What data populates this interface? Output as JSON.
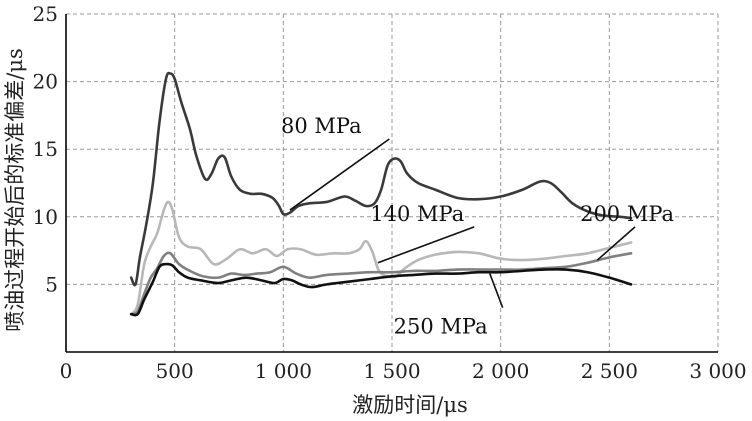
{
  "chart_data": {
    "type": "line",
    "title": "",
    "xlabel": "激励时间/μs",
    "ylabel": "喷油过程开始后的标准偏差/μs",
    "xlim": [
      0,
      3000
    ],
    "ylim": [
      0,
      25
    ],
    "xticks": [
      0,
      500,
      1000,
      1500,
      2000,
      2500,
      3000
    ],
    "xtick_labels": [
      "0",
      "500",
      "1 000",
      "1 500",
      "2 000",
      "2 500",
      "3 000"
    ],
    "yticks": [
      5,
      10,
      15,
      20,
      25
    ],
    "ytick_labels": [
      "5",
      "10",
      "15",
      "20",
      "25"
    ],
    "grid": true,
    "series": [
      {
        "name": "80 MPa",
        "color": "#3a3a3a",
        "x": [
          300,
          320,
          340,
          370,
          400,
          430,
          460,
          480,
          500,
          530,
          570,
          600,
          640,
          670,
          700,
          730,
          760,
          800,
          850,
          900,
          950,
          980,
          1000,
          1030,
          1070,
          1120,
          1200,
          1280,
          1330,
          1380,
          1420,
          1450,
          1480,
          1510,
          1540,
          1570,
          1620,
          1700,
          1800,
          1900,
          2000,
          2100,
          2180,
          2230,
          2280,
          2330,
          2400,
          2470,
          2550,
          2600
        ],
        "y": [
          5.5,
          5.0,
          7.0,
          9.5,
          12.5,
          17.0,
          20.2,
          20.6,
          20.2,
          18.5,
          16.5,
          14.5,
          12.8,
          13.2,
          14.3,
          14.4,
          13.0,
          12.0,
          11.7,
          11.7,
          11.4,
          10.8,
          10.2,
          10.3,
          10.8,
          11.0,
          11.1,
          11.5,
          11.2,
          10.8,
          11.0,
          12.0,
          13.8,
          14.3,
          14.1,
          13.2,
          12.5,
          12.0,
          11.4,
          11.3,
          11.5,
          12.0,
          12.6,
          12.5,
          11.8,
          11.0,
          10.4,
          10.1,
          10.0,
          9.9
        ]
      },
      {
        "name": "140 MPa",
        "color": "#b8b8b8",
        "x": [
          300,
          330,
          360,
          390,
          420,
          450,
          470,
          490,
          520,
          560,
          620,
          680,
          740,
          800,
          860,
          920,
          970,
          1020,
          1080,
          1150,
          1230,
          1300,
          1350,
          1380,
          1410,
          1440,
          1480,
          1520,
          1560,
          1620,
          1700,
          1800,
          1900,
          2000,
          2100,
          2200,
          2300,
          2400,
          2500,
          2600
        ],
        "y": [
          2.8,
          3.5,
          6.5,
          7.8,
          8.8,
          10.5,
          11.1,
          10.5,
          8.5,
          7.8,
          7.6,
          6.5,
          6.9,
          7.6,
          7.3,
          7.6,
          7.1,
          7.6,
          7.6,
          7.2,
          7.3,
          7.3,
          7.6,
          8.2,
          7.4,
          6.0,
          5.6,
          5.6,
          6.2,
          6.8,
          7.2,
          7.4,
          7.3,
          6.9,
          6.8,
          6.9,
          7.1,
          7.3,
          7.7,
          8.1
        ]
      },
      {
        "name": "200 MPa",
        "color": "#808080",
        "x": [
          300,
          330,
          360,
          390,
          420,
          450,
          480,
          520,
          570,
          630,
          700,
          760,
          820,
          880,
          940,
          1000,
          1060,
          1120,
          1200,
          1300,
          1400,
          1500,
          1600,
          1700,
          1800,
          1900,
          2000,
          2100,
          2200,
          2300,
          2400,
          2500,
          2600
        ],
        "y": [
          2.8,
          3.0,
          4.3,
          5.5,
          6.2,
          7.1,
          7.3,
          6.5,
          6.0,
          5.6,
          5.5,
          5.8,
          5.7,
          5.8,
          5.9,
          6.3,
          5.8,
          5.5,
          5.7,
          5.8,
          5.9,
          5.9,
          6.0,
          6.0,
          6.1,
          6.1,
          6.1,
          6.1,
          6.2,
          6.3,
          6.6,
          7.0,
          7.3
        ]
      },
      {
        "name": "250 MPa",
        "color": "#111111",
        "x": [
          300,
          330,
          360,
          400,
          430,
          460,
          490,
          520,
          560,
          620,
          700,
          760,
          830,
          900,
          960,
          1000,
          1040,
          1080,
          1130,
          1200,
          1300,
          1400,
          1500,
          1600,
          1700,
          1800,
          1900,
          2000,
          2100,
          2200,
          2300,
          2400,
          2500,
          2600
        ],
        "y": [
          2.8,
          2.8,
          3.9,
          5.2,
          6.3,
          6.5,
          6.4,
          5.9,
          5.5,
          5.3,
          5.1,
          5.3,
          5.5,
          5.3,
          5.1,
          5.4,
          5.3,
          5.0,
          4.8,
          5.0,
          5.2,
          5.4,
          5.6,
          5.7,
          5.8,
          5.8,
          5.9,
          5.9,
          6.0,
          6.1,
          6.1,
          5.9,
          5.5,
          5.0
        ]
      }
    ],
    "annotations": [
      {
        "text": "80 MPa",
        "series": "80 MPa",
        "text_at": [
          1520,
          16.2
        ],
        "point": [
          1030,
          10.5
        ]
      },
      {
        "text": "140 MPa",
        "series": "140 MPa",
        "text_at": [
          1860,
          9.7
        ],
        "point": [
          1435,
          6.6
        ]
      },
      {
        "text": "200 MPa",
        "series": "200 MPa",
        "text_at": [
          2600,
          9.7
        ],
        "point": [
          2445,
          6.8
        ]
      },
      {
        "text": "250 MPa",
        "series": "250 MPa",
        "text_at": [
          2000,
          1.8
        ],
        "point": [
          1950,
          5.8
        ]
      }
    ]
  }
}
